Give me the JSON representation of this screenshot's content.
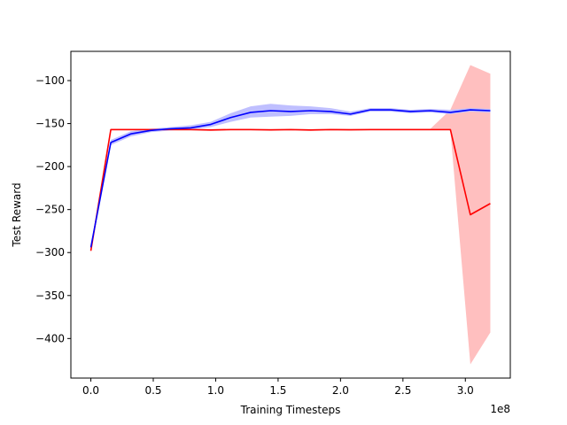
{
  "chart_data": {
    "type": "line",
    "xlabel": "Training Timesteps",
    "ylabel": "Test Reward",
    "x_offset_label": "1e8",
    "xlim": [
      -0.16,
      3.36
    ],
    "ylim": [
      -446,
      -66
    ],
    "x_ticks": [
      0.0,
      0.5,
      1.0,
      1.5,
      2.0,
      2.5,
      3.0
    ],
    "x_tick_labels": [
      "0.0",
      "0.5",
      "1.0",
      "1.5",
      "2.0",
      "2.5",
      "3.0"
    ],
    "y_ticks": [
      -100,
      -150,
      -200,
      -250,
      -300,
      -350,
      -400
    ],
    "y_tick_labels": [
      "−100",
      "−150",
      "−200",
      "−250",
      "−300",
      "−350",
      "−400"
    ],
    "grid": false,
    "series": [
      {
        "color": "#ff0000",
        "band_color": "#ffbfbf",
        "x": [
          0.0,
          0.16,
          0.32,
          0.48,
          0.64,
          0.8,
          0.96,
          1.12,
          1.28,
          1.44,
          1.6,
          1.76,
          1.92,
          2.08,
          2.24,
          2.4,
          2.56,
          2.72,
          2.88,
          3.04,
          3.2
        ],
        "values": [
          -298,
          -157,
          -157,
          -157,
          -157,
          -157,
          -157.5,
          -157,
          -157,
          -157.3,
          -157,
          -157.5,
          -157,
          -157.2,
          -157,
          -157,
          -157,
          -157,
          -157,
          -256,
          -243
        ],
        "lower": [
          -300,
          -158,
          -158,
          -158,
          -158,
          -158,
          -158.5,
          -158,
          -158,
          -158.3,
          -158,
          -158.5,
          -158,
          -158.2,
          -158,
          -158,
          -158,
          -158,
          -158,
          -430,
          -393
        ],
        "upper": [
          -296,
          -156,
          -156,
          -156,
          -156,
          -156,
          -156.5,
          -156,
          -156,
          -156.3,
          -156,
          -156.5,
          -156,
          -156.2,
          -156,
          -156,
          -156,
          -156,
          -134,
          -82,
          -92
        ]
      },
      {
        "color": "#0000ff",
        "band_color": "#bfbfff",
        "x": [
          0.0,
          0.16,
          0.32,
          0.48,
          0.64,
          0.8,
          0.96,
          1.12,
          1.28,
          1.44,
          1.6,
          1.76,
          1.92,
          2.08,
          2.24,
          2.4,
          2.56,
          2.72,
          2.88,
          3.04,
          3.2
        ],
        "values": [
          -294,
          -172,
          -162,
          -158,
          -156,
          -155,
          -151,
          -143,
          -137,
          -135,
          -136,
          -135,
          -136,
          -139,
          -134,
          -134,
          -136,
          -135,
          -137,
          -134,
          -135
        ],
        "lower": [
          -296,
          -175,
          -165,
          -160,
          -158,
          -157,
          -154,
          -148,
          -143,
          -142,
          -141,
          -139,
          -139,
          -141,
          -136,
          -136,
          -138,
          -137,
          -139,
          -136,
          -137
        ],
        "upper": [
          -292,
          -169,
          -159,
          -156,
          -154,
          -152,
          -148,
          -138,
          -130,
          -127,
          -129,
          -130,
          -132,
          -136,
          -132,
          -132,
          -134,
          -133,
          -134,
          -132,
          -133
        ]
      }
    ]
  }
}
